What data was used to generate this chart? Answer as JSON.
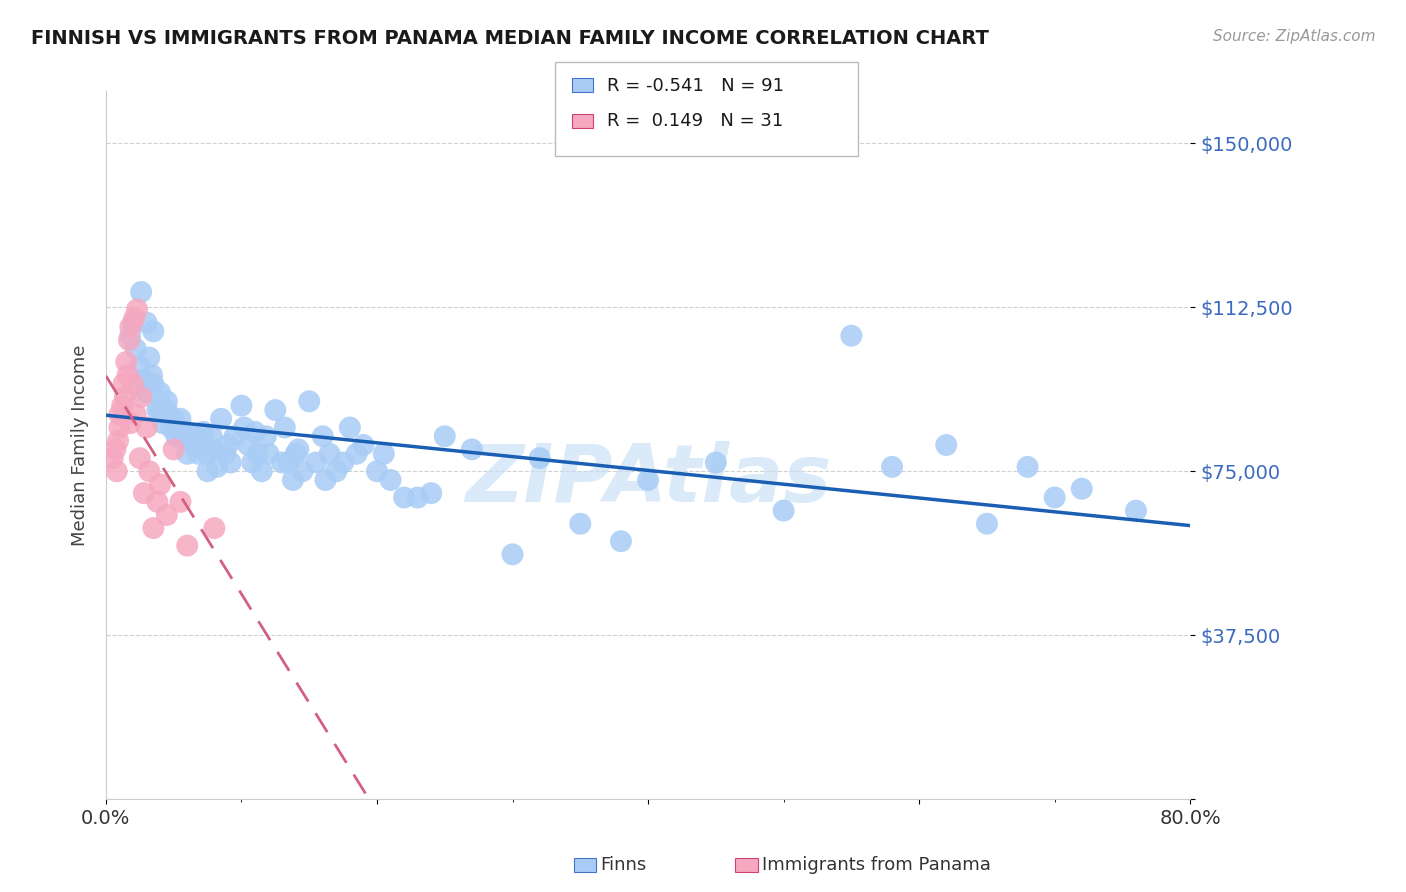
{
  "title": "FINNISH VS IMMIGRANTS FROM PANAMA MEDIAN FAMILY INCOME CORRELATION CHART",
  "source": "Source: ZipAtlas.com",
  "ylabel": "Median Family Income",
  "yticks": [
    0,
    37500,
    75000,
    112500,
    150000
  ],
  "ytick_labels": [
    "",
    "$37,500",
    "$75,000",
    "$112,500",
    "$150,000"
  ],
  "y_min": 0,
  "y_max": 162000,
  "x_min": 0.0,
  "x_max": 0.8,
  "legend_R1": "R = -0.541",
  "legend_N1": "N = 91",
  "legend_R2": "R =  0.149",
  "legend_N2": "N = 31",
  "color_finns": "#a8ccf5",
  "color_panama": "#f5a8c0",
  "color_trendline_finns": "#1a5fb4",
  "color_trendline_panama": "#d46080",
  "background_color": "#ffffff",
  "watermark": "ZIPAtlas",
  "watermark_color": "#c8dff5",
  "finns_x": [
    0.018,
    0.02,
    0.022,
    0.025,
    0.026,
    0.028,
    0.03,
    0.03,
    0.032,
    0.034,
    0.035,
    0.035,
    0.038,
    0.04,
    0.04,
    0.042,
    0.045,
    0.045,
    0.048,
    0.05,
    0.052,
    0.055,
    0.055,
    0.058,
    0.06,
    0.06,
    0.065,
    0.065,
    0.068,
    0.07,
    0.072,
    0.075,
    0.075,
    0.078,
    0.08,
    0.082,
    0.085,
    0.088,
    0.09,
    0.092,
    0.095,
    0.1,
    0.102,
    0.105,
    0.108,
    0.11,
    0.112,
    0.115,
    0.118,
    0.12,
    0.125,
    0.13,
    0.132,
    0.135,
    0.138,
    0.14,
    0.142,
    0.145,
    0.15,
    0.155,
    0.16,
    0.162,
    0.165,
    0.17,
    0.175,
    0.18,
    0.185,
    0.19,
    0.2,
    0.205,
    0.21,
    0.22,
    0.23,
    0.24,
    0.25,
    0.27,
    0.3,
    0.32,
    0.35,
    0.38,
    0.4,
    0.45,
    0.5,
    0.55,
    0.58,
    0.62,
    0.65,
    0.68,
    0.7,
    0.72,
    0.76
  ],
  "finns_y": [
    106000,
    109000,
    103000,
    99000,
    116000,
    96000,
    93000,
    109000,
    101000,
    97000,
    95000,
    107000,
    89000,
    93000,
    89000,
    86000,
    91000,
    89000,
    85000,
    87000,
    83000,
    87000,
    84000,
    84000,
    83000,
    79000,
    81000,
    83000,
    79000,
    81000,
    84000,
    79000,
    75000,
    83000,
    80000,
    76000,
    87000,
    79000,
    81000,
    77000,
    83000,
    90000,
    85000,
    81000,
    77000,
    84000,
    79000,
    75000,
    83000,
    79000,
    89000,
    77000,
    85000,
    77000,
    73000,
    79000,
    80000,
    75000,
    91000,
    77000,
    83000,
    73000,
    79000,
    75000,
    77000,
    85000,
    79000,
    81000,
    75000,
    79000,
    73000,
    69000,
    69000,
    70000,
    83000,
    80000,
    56000,
    78000,
    63000,
    59000,
    73000,
    77000,
    66000,
    106000,
    76000,
    81000,
    63000,
    76000,
    69000,
    71000,
    66000
  ],
  "panama_x": [
    0.005,
    0.007,
    0.008,
    0.009,
    0.01,
    0.01,
    0.012,
    0.013,
    0.014,
    0.015,
    0.016,
    0.017,
    0.018,
    0.018,
    0.02,
    0.021,
    0.022,
    0.023,
    0.025,
    0.026,
    0.028,
    0.03,
    0.032,
    0.035,
    0.038,
    0.04,
    0.045,
    0.05,
    0.055,
    0.06,
    0.08
  ],
  "panama_y": [
    78000,
    80000,
    75000,
    82000,
    85000,
    88000,
    90000,
    95000,
    92000,
    100000,
    97000,
    105000,
    108000,
    86000,
    95000,
    110000,
    88000,
    112000,
    78000,
    92000,
    70000,
    85000,
    75000,
    62000,
    68000,
    72000,
    65000,
    80000,
    68000,
    58000,
    62000
  ]
}
